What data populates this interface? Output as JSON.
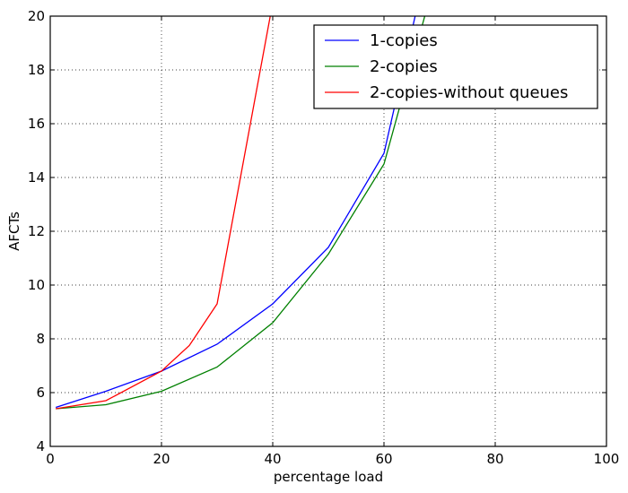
{
  "chart_data": {
    "type": "line",
    "xlabel": "percentage load",
    "ylabel": "AFCTs",
    "xlim": [
      0,
      100
    ],
    "ylim": [
      4,
      20
    ],
    "xticks": [
      0,
      20,
      40,
      60,
      80,
      100
    ],
    "yticks": [
      4,
      6,
      8,
      10,
      12,
      14,
      16,
      18,
      20
    ],
    "grid": true,
    "legend_position": "top-right",
    "series": [
      {
        "name": "1-copies",
        "color": "#0000ff",
        "x": [
          1,
          10,
          20,
          30,
          40,
          50,
          60,
          70
        ],
        "y": [
          5.45,
          6.05,
          6.8,
          7.8,
          9.3,
          11.4,
          14.9,
          24
        ]
      },
      {
        "name": "2-copies",
        "color": "#008000",
        "x": [
          1,
          10,
          20,
          30,
          40,
          50,
          60,
          70
        ],
        "y": [
          5.4,
          5.55,
          6.05,
          6.95,
          8.6,
          11.15,
          14.5,
          22
        ]
      },
      {
        "name": "2-copies-without queues",
        "color": "#ff0000",
        "x": [
          1,
          10,
          20,
          25,
          30,
          40
        ],
        "y": [
          5.4,
          5.7,
          6.8,
          7.75,
          9.3,
          20.5
        ]
      }
    ]
  }
}
